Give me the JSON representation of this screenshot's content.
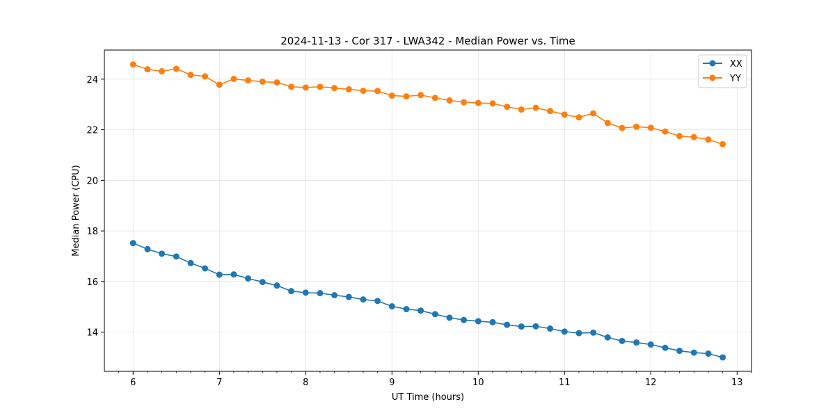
{
  "chart_data": {
    "type": "line",
    "title": "2024-11-13 - Cor 317 - LWA342 - Median Power vs. Time",
    "xlabel": "UT Time (hours)",
    "ylabel": "Median Power (CPU)",
    "xlim": [
      5.667,
      13.167
    ],
    "ylim": [
      12.45,
      25.15
    ],
    "xticks": [
      6,
      7,
      8,
      9,
      10,
      11,
      12,
      13
    ],
    "xtick_labels": [
      "6",
      "7",
      "8",
      "9",
      "10",
      "11",
      "12",
      "13"
    ],
    "yticks": [
      14,
      16,
      18,
      20,
      22,
      24
    ],
    "ytick_labels": [
      "14",
      "16",
      "18",
      "20",
      "22",
      "24"
    ],
    "grid": true,
    "legend_position": "top-right",
    "x": [
      6.0,
      6.167,
      6.333,
      6.5,
      6.667,
      6.833,
      7.0,
      7.167,
      7.333,
      7.5,
      7.667,
      7.833,
      8.0,
      8.167,
      8.333,
      8.5,
      8.667,
      8.833,
      9.0,
      9.167,
      9.333,
      9.5,
      9.667,
      9.833,
      10.0,
      10.167,
      10.333,
      10.5,
      10.667,
      10.833,
      11.0,
      11.167,
      11.333,
      11.5,
      11.667,
      11.833,
      12.0,
      12.167,
      12.333,
      12.5,
      12.667,
      12.833
    ],
    "series": [
      {
        "name": "XX",
        "color": "#1f77b4",
        "values": [
          17.52,
          17.28,
          17.1,
          16.99,
          16.73,
          16.52,
          16.27,
          16.28,
          16.12,
          15.98,
          15.84,
          15.62,
          15.56,
          15.54,
          15.46,
          15.39,
          15.29,
          15.23,
          15.02,
          14.91,
          14.85,
          14.71,
          14.57,
          14.48,
          14.43,
          14.39,
          14.29,
          14.22,
          14.23,
          14.14,
          14.02,
          13.96,
          13.98,
          13.79,
          13.65,
          13.59,
          13.51,
          13.38,
          13.26,
          13.19,
          13.15,
          13.0
        ]
      },
      {
        "name": "YY",
        "color": "#ff7f0e",
        "values": [
          24.58,
          24.39,
          24.31,
          24.41,
          24.17,
          24.11,
          23.78,
          24.01,
          23.95,
          23.9,
          23.87,
          23.7,
          23.67,
          23.7,
          23.65,
          23.6,
          23.54,
          23.53,
          23.35,
          23.32,
          23.37,
          23.26,
          23.16,
          23.09,
          23.06,
          23.04,
          22.91,
          22.8,
          22.87,
          22.74,
          22.6,
          22.49,
          22.65,
          22.27,
          22.07,
          22.12,
          22.08,
          21.93,
          21.75,
          21.71,
          21.61,
          21.43
        ]
      }
    ]
  }
}
